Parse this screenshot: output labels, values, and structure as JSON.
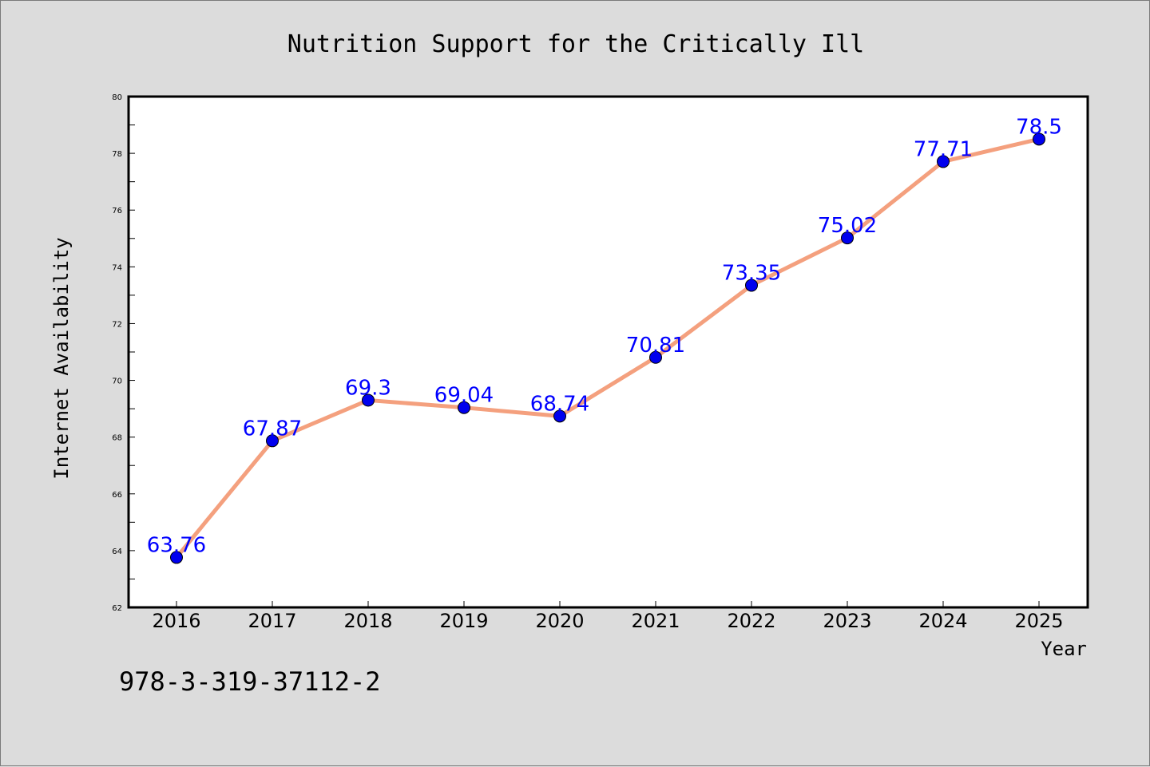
{
  "chart_data": {
    "type": "line",
    "title": "Nutrition Support for the Critically Ill",
    "xlabel": "Year",
    "ylabel": "Internet Availability",
    "x": [
      "2016",
      "2017",
      "2018",
      "2019",
      "2020",
      "2021",
      "2022",
      "2023",
      "2024",
      "2025"
    ],
    "series": [
      {
        "values": [
          63.76,
          67.87,
          69.3,
          69.04,
          68.74,
          70.81,
          73.35,
          75.02,
          77.71,
          78.5
        ],
        "labels": [
          "63.76",
          "67.87",
          "69.3",
          "69.04",
          "68.74",
          "70.81",
          "73.35",
          "75.02",
          "77.71",
          "78.5"
        ],
        "line_color": "#f4a07e",
        "marker_color": "#0000ee",
        "label_color": "#0000ff"
      }
    ],
    "ylim": [
      62,
      80
    ],
    "yticks": [
      62,
      64,
      66,
      68,
      70,
      72,
      74,
      76,
      78,
      80
    ],
    "grid": false,
    "legend": false
  },
  "footer": {
    "isbn": "978-3-319-37112-2"
  },
  "colors": {
    "background": "#dcdcdc",
    "plot_background": "#ffffff"
  }
}
